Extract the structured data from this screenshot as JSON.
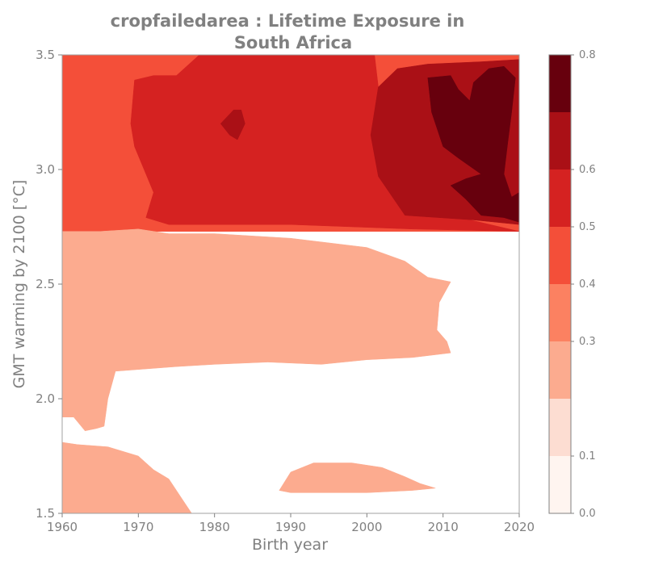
{
  "chart_data": {
    "type": "contourf",
    "title_line1": "cropfailedarea : Lifetime Exposure in",
    "title_line2": "South Africa",
    "xlabel": "Birth year",
    "ylabel": "GMT warming by 2100 [°C]",
    "xlim": [
      1960,
      2020
    ],
    "ylim": [
      1.5,
      3.5
    ],
    "x_ticks": [
      {
        "value": 1960,
        "label": "1960"
      },
      {
        "value": 1970,
        "label": "1970"
      },
      {
        "value": 1980,
        "label": "1980"
      },
      {
        "value": 1990,
        "label": "1990"
      },
      {
        "value": 2000,
        "label": "2000"
      },
      {
        "value": 2010,
        "label": "2010"
      },
      {
        "value": 2020,
        "label": "2020"
      }
    ],
    "y_ticks": [
      {
        "value": 1.5,
        "label": "1.5"
      },
      {
        "value": 2.0,
        "label": "2.0"
      },
      {
        "value": 2.5,
        "label": "2.5"
      },
      {
        "value": 3.0,
        "label": "3.0"
      },
      {
        "value": 3.5,
        "label": "3.5"
      }
    ],
    "colorbar": {
      "levels": [
        0.0,
        0.1,
        0.2,
        0.3,
        0.4,
        0.5,
        0.6,
        0.7,
        0.8
      ],
      "colors": [
        "#fff5f0",
        "#fdddd2",
        "#fcab8f",
        "#fc8161",
        "#f44f39",
        "#d52221",
        "#aa1016",
        "#67000d"
      ],
      "tick_labels": [
        {
          "value": 0.0,
          "label": "0.0"
        },
        {
          "value": 0.1,
          "label": "0.1"
        },
        {
          "value": 0.3,
          "label": "0.3"
        },
        {
          "value": 0.4,
          "label": "0.4"
        },
        {
          "value": 0.5,
          "label": "0.5"
        },
        {
          "value": 0.6,
          "label": "0.6"
        },
        {
          "value": 0.8,
          "label": "0.8"
        }
      ]
    },
    "regions": [
      {
        "level": 4,
        "points": [
          [
            1960,
            3.5
          ],
          [
            2020,
            3.5
          ],
          [
            2020,
            2.73
          ],
          [
            1960,
            2.73
          ]
        ]
      },
      {
        "level": 5,
        "points": [
          [
            1969.5,
            3.39
          ],
          [
            1972,
            3.41
          ],
          [
            1975,
            3.41
          ],
          [
            1978,
            3.5
          ],
          [
            2001,
            3.5
          ],
          [
            2001.5,
            3.36
          ],
          [
            2000.5,
            3.15
          ],
          [
            2001.5,
            2.97
          ],
          [
            2006,
            2.84
          ],
          [
            2011,
            2.8
          ],
          [
            2020,
            2.73
          ],
          [
            2006,
            2.74
          ],
          [
            1990,
            2.76
          ],
          [
            1980,
            2.76
          ],
          [
            1974,
            2.76
          ],
          [
            1971,
            2.79
          ],
          [
            1972,
            2.9
          ],
          [
            1969.5,
            3.1
          ],
          [
            1969,
            3.2
          ]
        ]
      },
      {
        "level": 6,
        "points": [
          [
            2001.5,
            3.36
          ],
          [
            2004,
            3.44
          ],
          [
            2008,
            3.46
          ],
          [
            2015,
            3.47
          ],
          [
            2020,
            3.48
          ],
          [
            2020,
            2.76
          ],
          [
            2014,
            2.78
          ],
          [
            2005,
            2.8
          ],
          [
            2001.5,
            2.97
          ],
          [
            2000.5,
            3.15
          ]
        ]
      },
      {
        "level": 6,
        "points": [
          [
            1980.8,
            3.2
          ],
          [
            1982.5,
            3.26
          ],
          [
            1983.5,
            3.26
          ],
          [
            1984,
            3.2
          ],
          [
            1983,
            3.13
          ],
          [
            1982,
            3.15
          ]
        ]
      },
      {
        "level": 7,
        "points": [
          [
            2008,
            3.4
          ],
          [
            2011,
            3.41
          ],
          [
            2012,
            3.35
          ],
          [
            2013.5,
            3.3
          ],
          [
            2014,
            3.38
          ],
          [
            2016,
            3.44
          ],
          [
            2018,
            3.45
          ],
          [
            2019.5,
            3.4
          ],
          [
            2019,
            3.25
          ],
          [
            2018.5,
            3.12
          ],
          [
            2018,
            2.98
          ],
          [
            2019,
            2.88
          ],
          [
            2020,
            2.9
          ],
          [
            2020,
            2.77
          ],
          [
            2018,
            2.79
          ],
          [
            2015,
            2.8
          ],
          [
            2013,
            2.87
          ],
          [
            2011,
            2.93
          ],
          [
            2013,
            2.96
          ],
          [
            2015,
            2.98
          ],
          [
            2012,
            3.05
          ],
          [
            2010,
            3.1
          ],
          [
            2008.5,
            3.25
          ]
        ]
      },
      {
        "level": 2,
        "points": [
          [
            1960,
            2.73
          ],
          [
            1965,
            2.73
          ],
          [
            1970,
            2.74
          ],
          [
            1974,
            2.72
          ],
          [
            1980,
            2.72
          ],
          [
            1990,
            2.7
          ],
          [
            2000,
            2.66
          ],
          [
            2005,
            2.6
          ],
          [
            2008,
            2.53
          ],
          [
            2011,
            2.51
          ],
          [
            2009.5,
            2.42
          ],
          [
            2009.2,
            2.3
          ],
          [
            2010.5,
            2.25
          ],
          [
            2011,
            2.2
          ],
          [
            2006,
            2.18
          ],
          [
            2000,
            2.17
          ],
          [
            1994,
            2.15
          ],
          [
            1987,
            2.16
          ],
          [
            1980,
            2.15
          ],
          [
            1975,
            2.14
          ],
          [
            1967,
            2.12
          ],
          [
            1966,
            2.0
          ],
          [
            1965.5,
            1.88
          ],
          [
            1964.5,
            1.87
          ],
          [
            1963,
            1.86
          ],
          [
            1961.5,
            1.92
          ],
          [
            1960,
            1.92
          ]
        ]
      },
      {
        "level": 2,
        "points": [
          [
            1960,
            1.81
          ],
          [
            1962,
            1.8
          ],
          [
            1966,
            1.79
          ],
          [
            1970,
            1.75
          ],
          [
            1972,
            1.69
          ],
          [
            1974,
            1.65
          ],
          [
            1975,
            1.6
          ],
          [
            1976,
            1.55
          ],
          [
            1977,
            1.5
          ],
          [
            1960,
            1.5
          ]
        ]
      },
      {
        "level": 2,
        "points": [
          [
            1988.5,
            1.6
          ],
          [
            1990,
            1.68
          ],
          [
            1993,
            1.72
          ],
          [
            1998,
            1.72
          ],
          [
            2002,
            1.7
          ],
          [
            2005,
            1.66
          ],
          [
            2007,
            1.63
          ],
          [
            2009,
            1.61
          ],
          [
            2006,
            1.6
          ],
          [
            2000,
            1.59
          ],
          [
            1995,
            1.59
          ],
          [
            1990,
            1.59
          ]
        ]
      }
    ]
  }
}
